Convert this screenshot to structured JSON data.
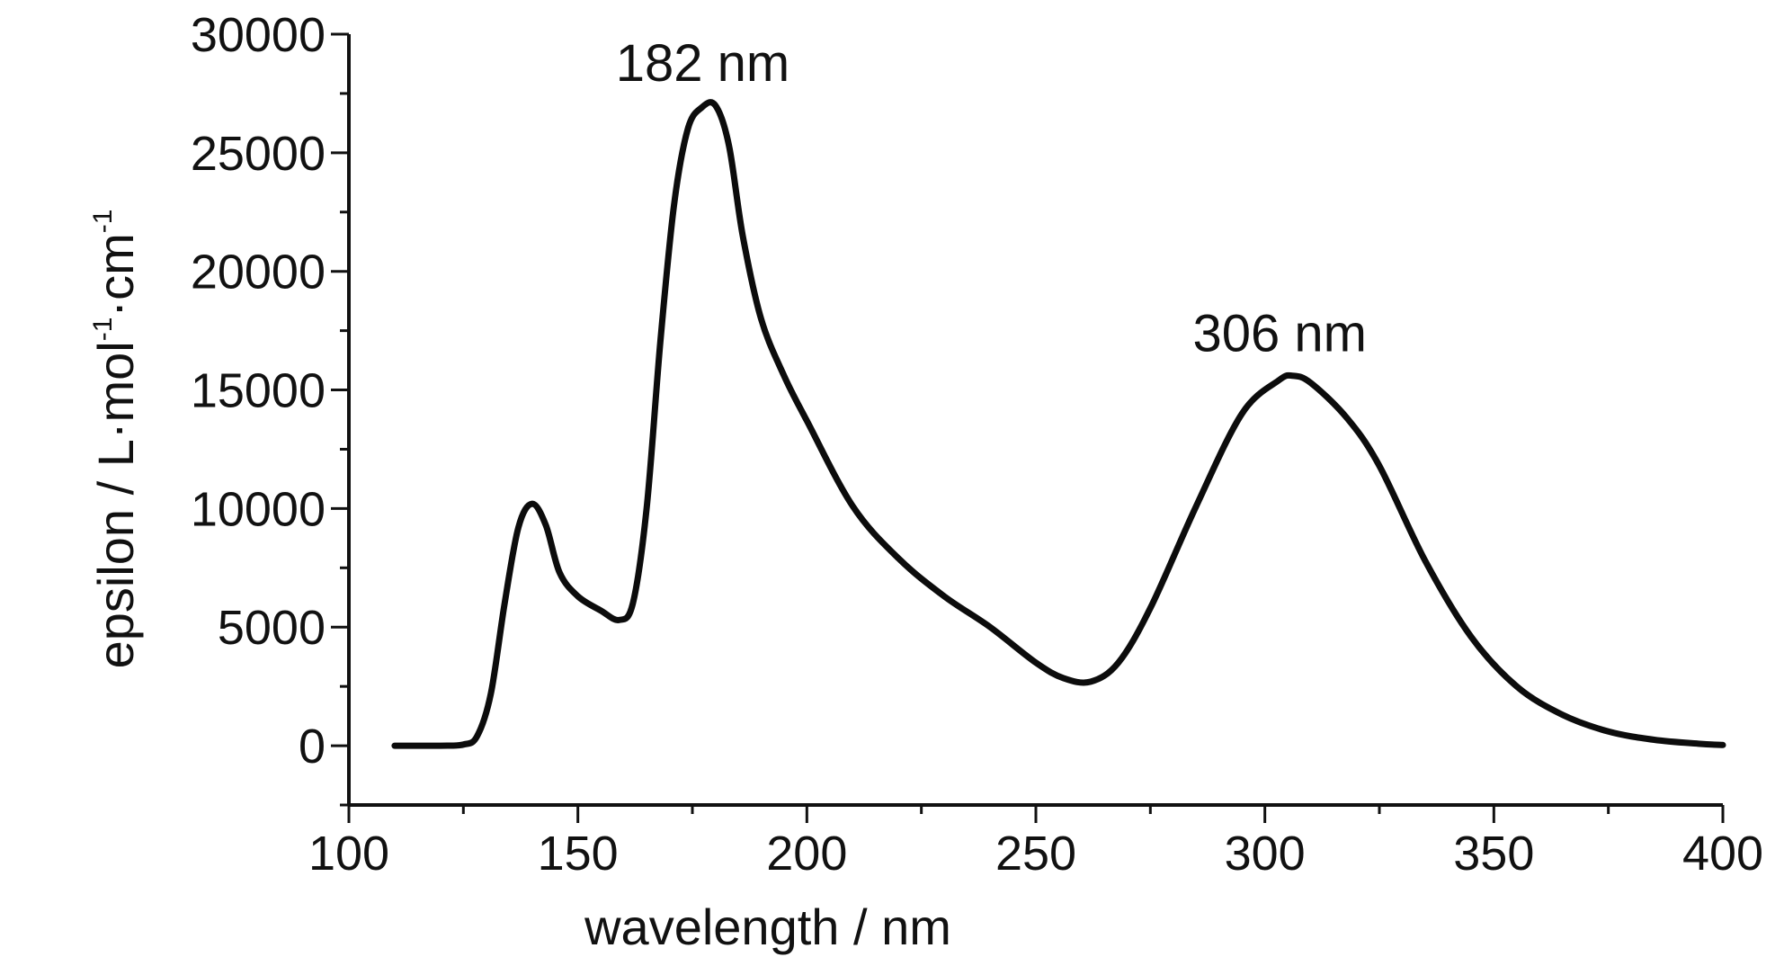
{
  "chart_data": {
    "type": "line",
    "title": "",
    "xlabel": "wavelength / nm",
    "ylabel": {
      "parts": [
        "epsilon / L·mol",
        "-1",
        "·cm",
        "-1"
      ]
    },
    "xlim": [
      100,
      400
    ],
    "ylim": [
      -2500,
      30000
    ],
    "x_ticks": [
      100,
      150,
      200,
      250,
      300,
      350,
      400
    ],
    "y_ticks": [
      0,
      5000,
      10000,
      15000,
      20000,
      25000,
      30000
    ],
    "x_tick_labels": [
      "100",
      "150",
      "200",
      "250",
      "300",
      "350",
      "400"
    ],
    "y_tick_labels": [
      "0",
      "5000",
      "10000",
      "15000",
      "20000",
      "25000",
      "30000"
    ],
    "grid": false,
    "series": [
      {
        "color": "#0c0c0c",
        "x": [
          110,
          120,
          125,
          128,
          131,
          134,
          137,
          140,
          143,
          146,
          150,
          155,
          159,
          162,
          165,
          168,
          171,
          174,
          177,
          180,
          183,
          186,
          190,
          195,
          200,
          210,
          220,
          230,
          240,
          250,
          256,
          262,
          268,
          275,
          285,
          295,
          303,
          306,
          310,
          318,
          325,
          335,
          345,
          355,
          365,
          375,
          385,
          395,
          400
        ],
        "y": [
          0,
          0,
          50,
          400,
          2200,
          6000,
          9200,
          10200,
          9300,
          7300,
          6300,
          5700,
          5300,
          6000,
          10000,
          17000,
          22800,
          26000,
          26900,
          27000,
          25300,
          21500,
          18000,
          15600,
          13700,
          10100,
          7900,
          6300,
          5000,
          3500,
          2850,
          2700,
          3500,
          5800,
          10100,
          14000,
          15400,
          15600,
          15300,
          13800,
          11800,
          7800,
          4600,
          2500,
          1300,
          600,
          250,
          80,
          30
        ]
      }
    ],
    "annotations": [
      {
        "text": "182 nm",
        "x": 180,
        "y": 27000
      },
      {
        "text": "306 nm",
        "x": 306,
        "y": 15600
      }
    ]
  }
}
